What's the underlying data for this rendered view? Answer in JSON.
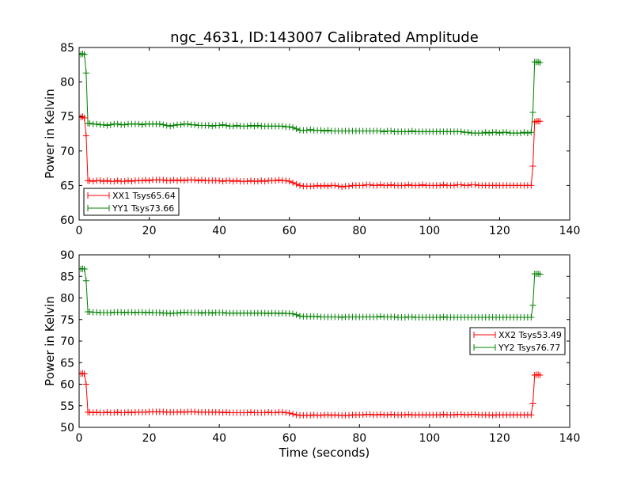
{
  "title": "ngc_4631, ID:143007 Calibrated Amplitude",
  "chart_data": [
    {
      "type": "line",
      "title": "ngc_4631, ID:143007 Calibrated Amplitude",
      "xlabel": "",
      "ylabel": "Power in Kelvin",
      "xlim": [
        0,
        140
      ],
      "ylim": [
        60,
        85
      ],
      "xticks": [
        "0",
        "20",
        "40",
        "60",
        "80",
        "100",
        "120",
        "140"
      ],
      "yticks": [
        "60",
        "65",
        "70",
        "75",
        "80",
        "85"
      ],
      "grid": false,
      "legend_position": "lower-left",
      "x": [
        0,
        0.5,
        1,
        1.5,
        2,
        2.5,
        3,
        4,
        5,
        6,
        7,
        8,
        9,
        10,
        11,
        12,
        13,
        14,
        15,
        16,
        17,
        18,
        19,
        20,
        21,
        22,
        23,
        24,
        25,
        26,
        27,
        28,
        29,
        30,
        31,
        32,
        33,
        34,
        35,
        36,
        37,
        38,
        39,
        40,
        41,
        42,
        43,
        44,
        45,
        46,
        47,
        48,
        49,
        50,
        51,
        52,
        53,
        54,
        55,
        56,
        57,
        58,
        59,
        60,
        61,
        62,
        63,
        64,
        65,
        66,
        67,
        68,
        69,
        70,
        71,
        72,
        73,
        74,
        75,
        76,
        77,
        78,
        79,
        80,
        81,
        82,
        83,
        84,
        85,
        86,
        87,
        88,
        89,
        90,
        91,
        92,
        93,
        94,
        95,
        96,
        97,
        98,
        99,
        100,
        101,
        102,
        103,
        104,
        105,
        106,
        107,
        108,
        109,
        110,
        111,
        112,
        113,
        114,
        115,
        116,
        117,
        118,
        119,
        120,
        121,
        122,
        123,
        124,
        125,
        126,
        127,
        128,
        129,
        129.5,
        130,
        130.5,
        131,
        131.5
      ],
      "series": [
        {
          "name": "XX1 Tsys65.64",
          "color": "#ff0000",
          "values": [
            75.0,
            74.9,
            75.0,
            74.8,
            72.2,
            65.7,
            65.7,
            65.6,
            65.7,
            65.7,
            65.6,
            65.7,
            65.6,
            65.6,
            65.7,
            65.6,
            65.6,
            65.7,
            65.6,
            65.7,
            65.7,
            65.7,
            65.8,
            65.7,
            65.8,
            65.8,
            65.8,
            65.8,
            65.7,
            65.7,
            65.8,
            65.7,
            65.8,
            65.7,
            65.8,
            65.8,
            65.8,
            65.7,
            65.8,
            65.7,
            65.7,
            65.7,
            65.7,
            65.7,
            65.6,
            65.7,
            65.7,
            65.6,
            65.7,
            65.6,
            65.6,
            65.6,
            65.7,
            65.6,
            65.6,
            65.7,
            65.6,
            65.7,
            65.7,
            65.7,
            65.8,
            65.7,
            65.7,
            65.6,
            65.4,
            65.2,
            65.0,
            64.9,
            64.9,
            64.9,
            64.9,
            65.0,
            64.9,
            65.0,
            64.9,
            65.0,
            65.0,
            64.9,
            64.8,
            64.9,
            64.9,
            65.0,
            65.0,
            65.0,
            65.0,
            65.1,
            65.1,
            65.0,
            65.0,
            65.1,
            65.0,
            65.0,
            65.1,
            65.0,
            65.0,
            65.0,
            65.0,
            65.1,
            65.0,
            65.0,
            65.0,
            65.1,
            65.0,
            65.0,
            65.0,
            65.0,
            65.0,
            65.1,
            65.0,
            65.0,
            65.0,
            65.1,
            65.1,
            65.0,
            65.0,
            65.1,
            65.1,
            65.0,
            65.0,
            65.0,
            65.0,
            65.0,
            65.0,
            65.0,
            65.0,
            65.0,
            65.0,
            65.0,
            65.0,
            65.0,
            65.0,
            65.0,
            65.0,
            67.8,
            74.2,
            74.3,
            74.3,
            74.3
          ]
        },
        {
          "name": "YY1 Tsys73.66",
          "color": "#008000",
          "values": [
            84.1,
            84.0,
            84.1,
            84.0,
            81.3,
            74.0,
            74.0,
            73.9,
            73.9,
            73.8,
            73.8,
            73.7,
            73.8,
            73.9,
            73.9,
            73.8,
            73.8,
            73.9,
            73.9,
            73.9,
            73.9,
            73.8,
            73.9,
            73.9,
            73.9,
            73.9,
            73.9,
            73.8,
            73.7,
            73.6,
            73.7,
            73.8,
            73.8,
            73.9,
            73.9,
            73.8,
            73.8,
            73.7,
            73.7,
            73.7,
            73.7,
            73.6,
            73.7,
            73.7,
            73.8,
            73.7,
            73.6,
            73.6,
            73.7,
            73.6,
            73.6,
            73.6,
            73.7,
            73.6,
            73.7,
            73.6,
            73.6,
            73.6,
            73.6,
            73.6,
            73.6,
            73.6,
            73.5,
            73.5,
            73.4,
            73.2,
            73.0,
            73.0,
            73.0,
            73.1,
            73.0,
            73.0,
            73.0,
            72.9,
            73.0,
            72.9,
            72.9,
            72.9,
            72.9,
            72.9,
            72.9,
            72.9,
            72.9,
            72.9,
            72.9,
            72.9,
            72.9,
            72.9,
            72.9,
            72.9,
            72.8,
            72.9,
            72.9,
            72.8,
            72.8,
            72.8,
            72.8,
            72.8,
            72.9,
            72.8,
            72.8,
            72.8,
            72.8,
            72.8,
            72.8,
            72.8,
            72.8,
            72.8,
            72.8,
            72.8,
            72.8,
            72.8,
            72.8,
            72.7,
            72.7,
            72.6,
            72.6,
            72.6,
            72.6,
            72.7,
            72.6,
            72.7,
            72.7,
            72.6,
            72.7,
            72.7,
            72.6,
            72.6,
            72.6,
            72.6,
            72.7,
            72.6,
            72.7,
            75.6,
            82.9,
            82.9,
            82.9,
            82.8
          ]
        }
      ]
    },
    {
      "type": "line",
      "title": "",
      "xlabel": "Time (seconds)",
      "ylabel": "Power in Kelvin",
      "xlim": [
        0,
        140
      ],
      "ylim": [
        50,
        90
      ],
      "xticks": [
        "0",
        "20",
        "40",
        "60",
        "80",
        "100",
        "120",
        "140"
      ],
      "yticks": [
        "50",
        "55",
        "60",
        "65",
        "70",
        "75",
        "80",
        "85",
        "90"
      ],
      "grid": false,
      "legend_position": "center-right",
      "x": [
        0,
        0.5,
        1,
        1.5,
        2,
        2.5,
        3,
        4,
        5,
        6,
        7,
        8,
        9,
        10,
        11,
        12,
        13,
        14,
        15,
        16,
        17,
        18,
        19,
        20,
        21,
        22,
        23,
        24,
        25,
        26,
        27,
        28,
        29,
        30,
        31,
        32,
        33,
        34,
        35,
        36,
        37,
        38,
        39,
        40,
        41,
        42,
        43,
        44,
        45,
        46,
        47,
        48,
        49,
        50,
        51,
        52,
        53,
        54,
        55,
        56,
        57,
        58,
        59,
        60,
        61,
        62,
        63,
        64,
        65,
        66,
        67,
        68,
        69,
        70,
        71,
        72,
        73,
        74,
        75,
        76,
        77,
        78,
        79,
        80,
        81,
        82,
        83,
        84,
        85,
        86,
        87,
        88,
        89,
        90,
        91,
        92,
        93,
        94,
        95,
        96,
        97,
        98,
        99,
        100,
        101,
        102,
        103,
        104,
        105,
        106,
        107,
        108,
        109,
        110,
        111,
        112,
        113,
        114,
        115,
        116,
        117,
        118,
        119,
        120,
        121,
        122,
        123,
        124,
        125,
        126,
        127,
        128,
        129,
        129.5,
        130,
        130.5,
        131,
        131.5
      ],
      "series": [
        {
          "name": "XX2 Tsys53.49",
          "color": "#ff0000",
          "values": [
            62.5,
            62.4,
            62.5,
            62.4,
            60.0,
            53.5,
            53.5,
            53.4,
            53.5,
            53.4,
            53.4,
            53.5,
            53.4,
            53.4,
            53.5,
            53.4,
            53.4,
            53.5,
            53.4,
            53.5,
            53.5,
            53.5,
            53.5,
            53.6,
            53.6,
            53.6,
            53.6,
            53.6,
            53.5,
            53.5,
            53.5,
            53.5,
            53.6,
            53.5,
            53.6,
            53.6,
            53.6,
            53.5,
            53.5,
            53.5,
            53.5,
            53.5,
            53.5,
            53.5,
            53.4,
            53.5,
            53.4,
            53.4,
            53.4,
            53.4,
            53.4,
            53.4,
            53.5,
            53.4,
            53.4,
            53.4,
            53.4,
            53.5,
            53.4,
            53.4,
            53.5,
            53.5,
            53.4,
            53.3,
            53.1,
            52.9,
            52.8,
            52.8,
            52.8,
            52.8,
            52.9,
            52.8,
            52.8,
            52.9,
            52.9,
            52.8,
            52.9,
            52.8,
            52.8,
            52.8,
            52.8,
            52.9,
            52.9,
            52.9,
            52.9,
            53.0,
            53.0,
            52.9,
            52.9,
            53.0,
            52.9,
            52.9,
            53.0,
            52.9,
            52.9,
            52.9,
            52.9,
            53.0,
            52.9,
            52.9,
            52.9,
            52.9,
            52.9,
            52.9,
            52.9,
            52.9,
            52.9,
            53.0,
            52.9,
            52.9,
            52.9,
            53.0,
            53.0,
            52.9,
            52.9,
            53.0,
            53.0,
            52.9,
            52.9,
            52.9,
            52.9,
            52.8,
            52.9,
            52.9,
            52.9,
            52.9,
            52.9,
            52.9,
            52.9,
            52.9,
            52.9,
            52.9,
            52.9,
            55.6,
            62.1,
            62.2,
            62.2,
            62.1
          ]
        },
        {
          "name": "YY2 Tsys76.77",
          "color": "#008000",
          "values": [
            86.8,
            86.7,
            86.8,
            86.7,
            84.0,
            76.8,
            76.8,
            76.7,
            76.7,
            76.6,
            76.6,
            76.6,
            76.6,
            76.7,
            76.7,
            76.7,
            76.6,
            76.7,
            76.7,
            76.6,
            76.7,
            76.7,
            76.6,
            76.7,
            76.6,
            76.6,
            76.6,
            76.5,
            76.5,
            76.4,
            76.5,
            76.5,
            76.6,
            76.7,
            76.6,
            76.6,
            76.6,
            76.6,
            76.5,
            76.6,
            76.6,
            76.5,
            76.6,
            76.6,
            76.6,
            76.5,
            76.5,
            76.5,
            76.5,
            76.5,
            76.5,
            76.5,
            76.5,
            76.5,
            76.5,
            76.5,
            76.5,
            76.4,
            76.5,
            76.5,
            76.4,
            76.5,
            76.4,
            76.4,
            76.3,
            76.1,
            75.8,
            75.7,
            75.7,
            75.7,
            75.7,
            75.7,
            75.6,
            75.6,
            75.6,
            75.6,
            75.6,
            75.6,
            75.5,
            75.6,
            75.6,
            75.6,
            75.6,
            75.6,
            75.6,
            75.6,
            75.6,
            75.6,
            75.6,
            75.7,
            75.6,
            75.6,
            75.6,
            75.6,
            75.5,
            75.5,
            75.5,
            75.6,
            75.6,
            75.5,
            75.5,
            75.5,
            75.5,
            75.5,
            75.5,
            75.5,
            75.5,
            75.6,
            75.5,
            75.5,
            75.5,
            75.5,
            75.5,
            75.5,
            75.5,
            75.5,
            75.5,
            75.5,
            75.5,
            75.5,
            75.5,
            75.5,
            75.5,
            75.5,
            75.5,
            75.5,
            75.5,
            75.5,
            75.5,
            75.5,
            75.5,
            75.5,
            75.5,
            78.3,
            85.6,
            85.6,
            85.6,
            85.5
          ]
        }
      ]
    }
  ]
}
